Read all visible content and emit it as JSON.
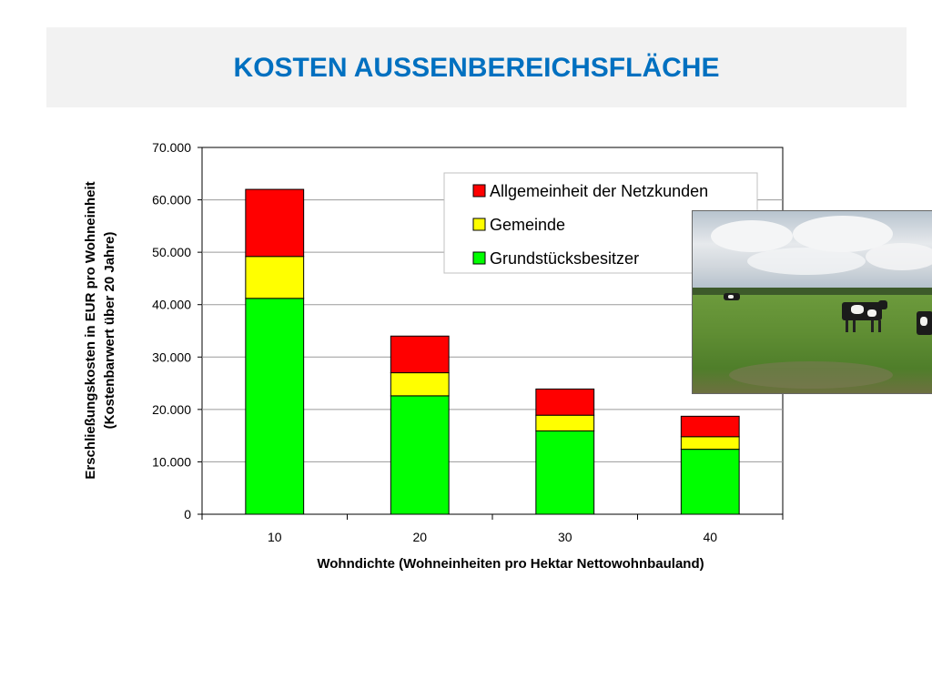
{
  "slide": {
    "title": "KOSTEN AUSSENBEREICHSFLÄCHE"
  },
  "colors": {
    "title": "#0070c0",
    "allgemeinheit": "#ff0000",
    "gemeinde": "#ffff00",
    "grundstuecksbesitzer": "#00ff00"
  },
  "chart_data": {
    "type": "bar",
    "stacked": true,
    "categories": [
      "10",
      "20",
      "30",
      "40"
    ],
    "series": [
      {
        "name": "Grundstücksbesitzer",
        "values": [
          41200,
          22600,
          15900,
          12400
        ],
        "color": "#00ff00"
      },
      {
        "name": "Gemeinde",
        "values": [
          8000,
          4400,
          3000,
          2400
        ],
        "color": "#ffff00"
      },
      {
        "name": "Allgemeinheit der Netzkunden",
        "values": [
          12800,
          7000,
          5000,
          3900
        ],
        "color": "#ff0000"
      }
    ],
    "legend_order": [
      "Allgemeinheit der Netzkunden",
      "Gemeinde",
      "Grundstücksbesitzer"
    ],
    "legend_position": "top-right",
    "xlabel": "Wohndichte (Wohneinheiten pro Hektar Nettowohnbauland)",
    "ylabel_line1": "Erschließungskosten in EUR pro Wohneinheit",
    "ylabel_line2": "(Kostenbarwert über 20 Jahre)",
    "ylim": [
      0,
      70000
    ],
    "yticks": [
      "0",
      "10.000",
      "20.000",
      "30.000",
      "40.000",
      "50.000",
      "60.000",
      "70.000"
    ],
    "grid": true
  },
  "photo": {
    "icon": "cows-in-pasture-photo"
  }
}
